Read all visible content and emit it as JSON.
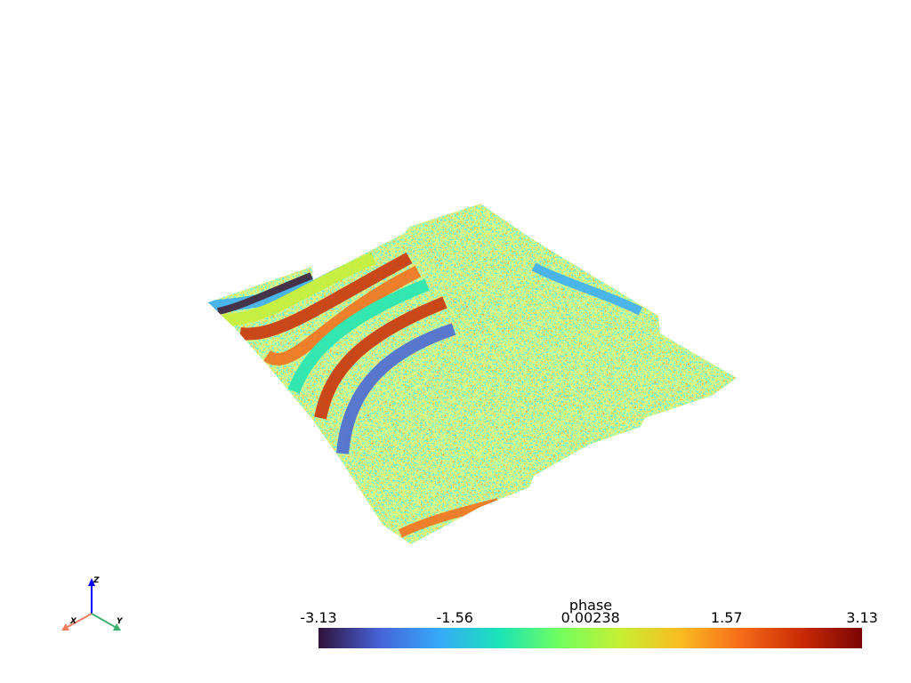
{
  "scalar_bar": {
    "title": "phase",
    "clim": [
      -3.13,
      3.13
    ],
    "ticks": [
      -3.13,
      -1.56,
      0.00238,
      1.57,
      3.13
    ],
    "colors": [
      "#30123b",
      "#4662d7",
      "#36aaf9",
      "#1ae4b6",
      "#72fe5e",
      "#c7ef34",
      "#fabb21",
      "#f66b19",
      "#ca2a04",
      "#7a0403"
    ]
  },
  "axes_widget": {
    "x_label": "X",
    "y_label": "Y",
    "z_label": "Z"
  }
}
